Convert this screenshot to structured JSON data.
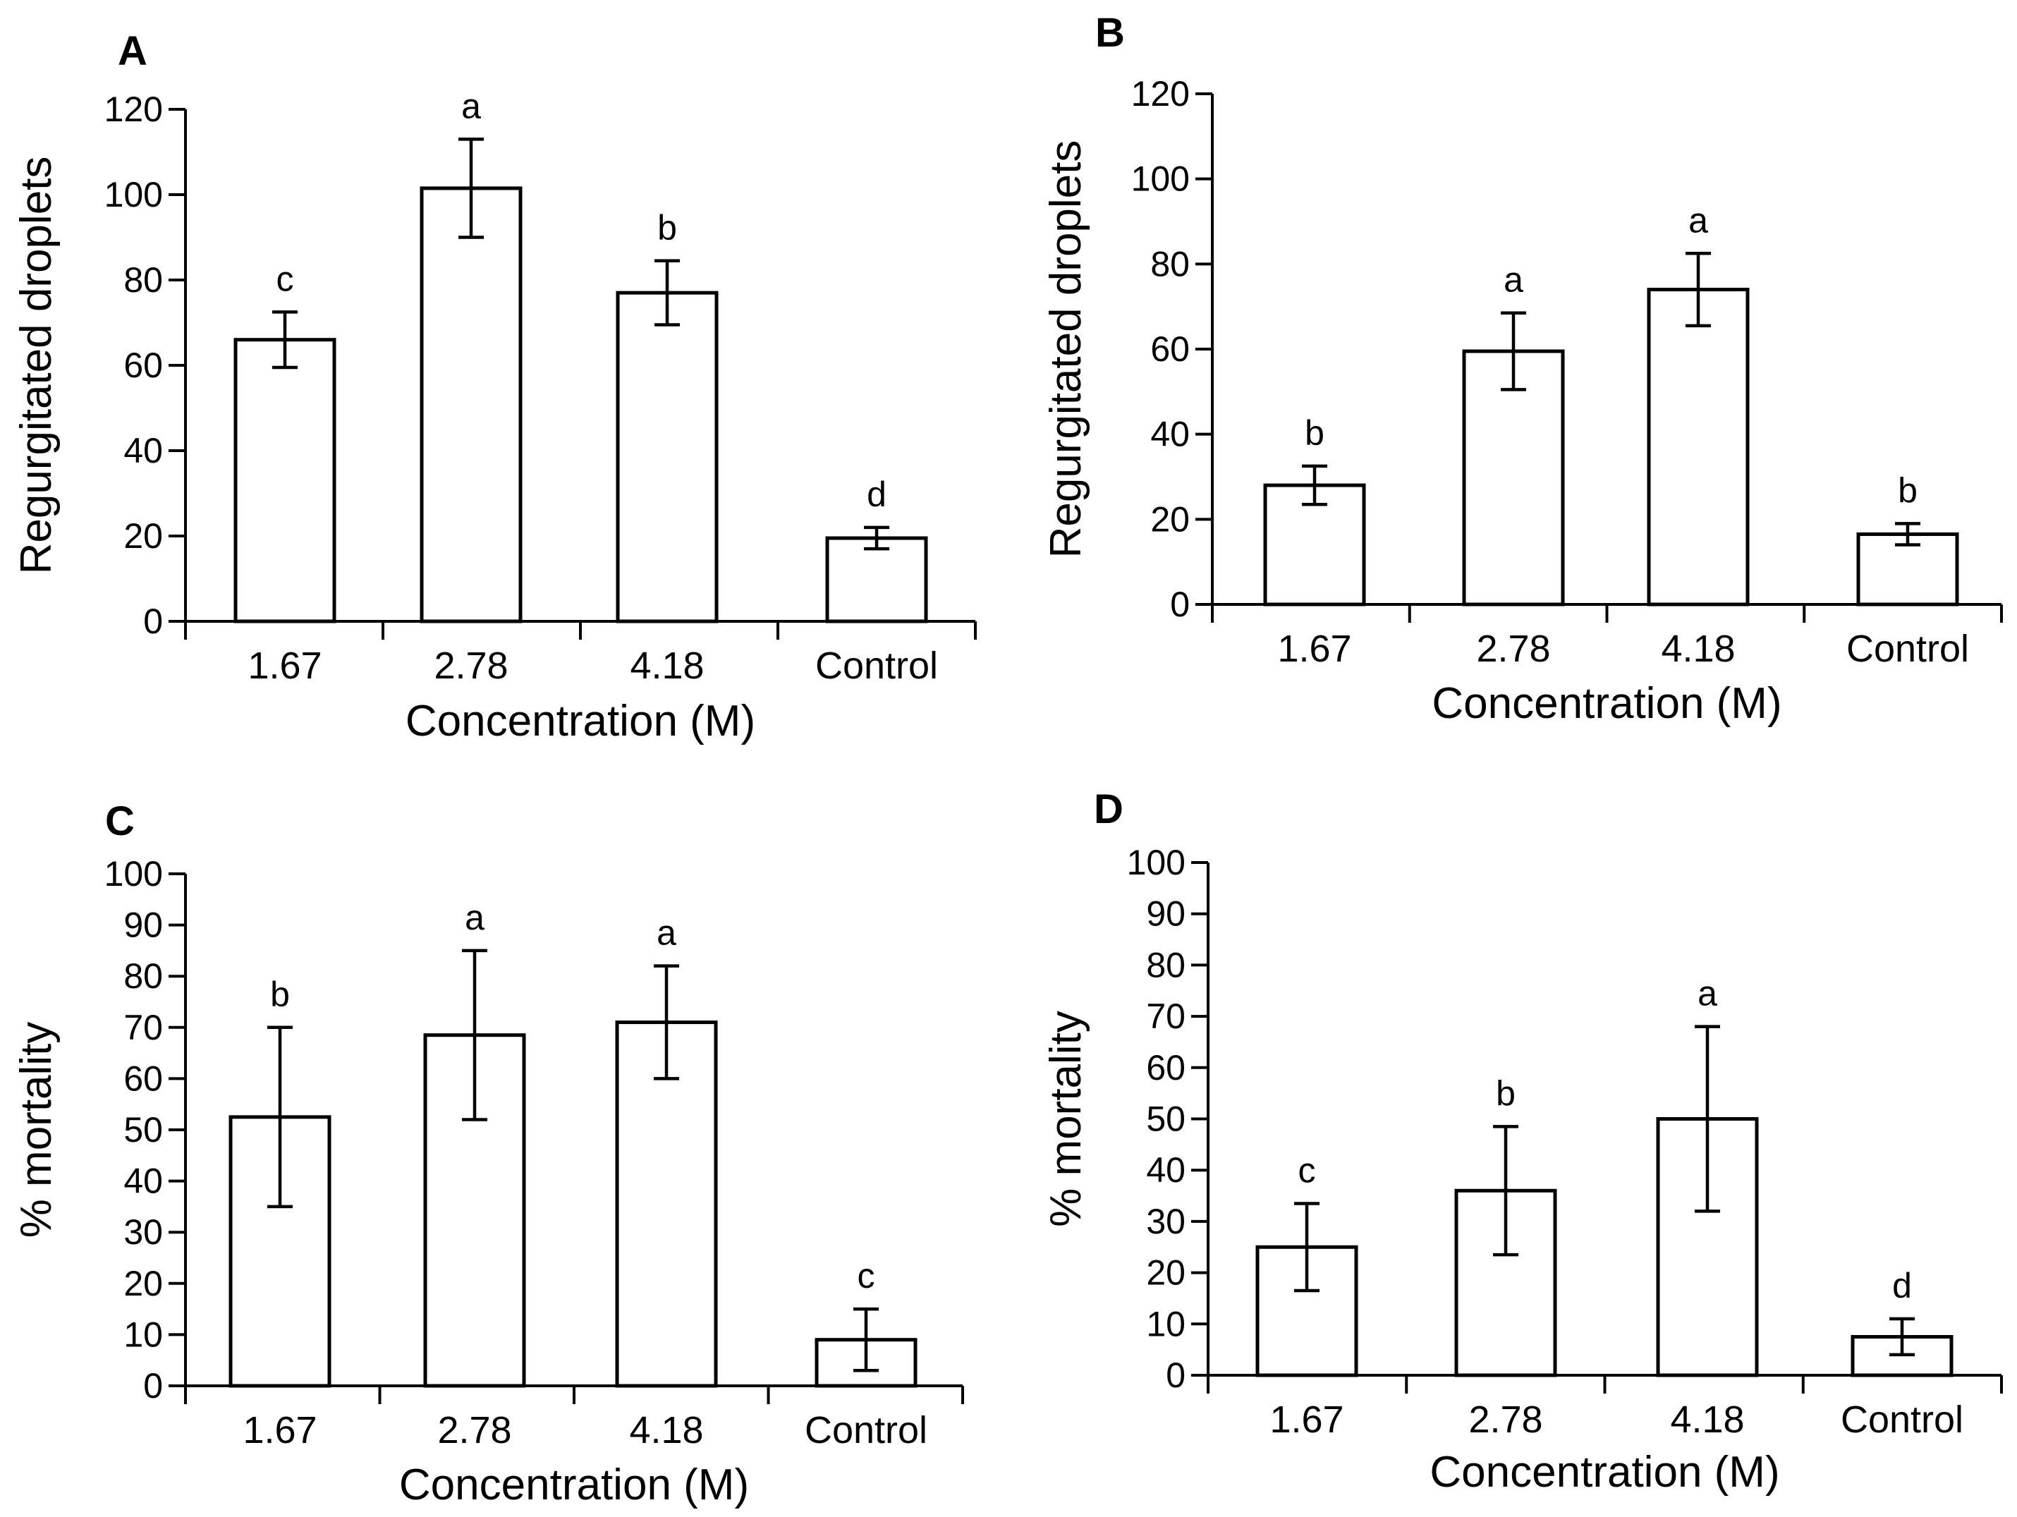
{
  "chart_data": [
    {
      "panel": "A",
      "type": "bar",
      "categories": [
        "1.67",
        "2.78",
        "4.18",
        "Control"
      ],
      "values": [
        66,
        101.5,
        77,
        19.5
      ],
      "errors": [
        6.5,
        11.5,
        7.5,
        2.5
      ],
      "significance": [
        "c",
        "a",
        "b",
        "d"
      ],
      "xlabel": "Concentration (M)",
      "ylabel": "Regurgitated droplets",
      "ylim": [
        0,
        120
      ],
      "yticks": [
        0,
        20,
        40,
        60,
        80,
        100,
        120
      ]
    },
    {
      "panel": "B",
      "type": "bar",
      "categories": [
        "1.67",
        "2.78",
        "4.18",
        "Control"
      ],
      "values": [
        28,
        59.5,
        74,
        16.5
      ],
      "errors": [
        4.5,
        9,
        8.5,
        2.5
      ],
      "significance": [
        "b",
        "a",
        "a",
        "b"
      ],
      "xlabel": "Concentration (M)",
      "ylabel": "Regurgitated droplets",
      "ylim": [
        0,
        120
      ],
      "yticks": [
        0,
        20,
        40,
        60,
        80,
        100,
        120
      ]
    },
    {
      "panel": "C",
      "type": "bar",
      "categories": [
        "1.67",
        "2.78",
        "4.18",
        "Control"
      ],
      "values": [
        52.5,
        68.5,
        71,
        9
      ],
      "errors": [
        17.5,
        16.5,
        11,
        6
      ],
      "significance": [
        "b",
        "a",
        "a",
        "c"
      ],
      "xlabel": "Concentration (M)",
      "ylabel": "% mortality",
      "ylim": [
        0,
        100
      ],
      "yticks": [
        0,
        10,
        20,
        30,
        40,
        50,
        60,
        70,
        80,
        90,
        100
      ]
    },
    {
      "panel": "D",
      "type": "bar",
      "categories": [
        "1.67",
        "2.78",
        "4.18",
        "Control"
      ],
      "values": [
        25,
        36,
        50,
        7.5
      ],
      "errors": [
        8.5,
        12.5,
        18,
        3.5
      ],
      "significance": [
        "c",
        "b",
        "a",
        "d"
      ],
      "xlabel": "Concentration (M)",
      "ylabel": "% mortality",
      "ylim": [
        0,
        100
      ],
      "yticks": [
        0,
        10,
        20,
        30,
        40,
        50,
        60,
        70,
        80,
        90,
        100
      ]
    }
  ]
}
